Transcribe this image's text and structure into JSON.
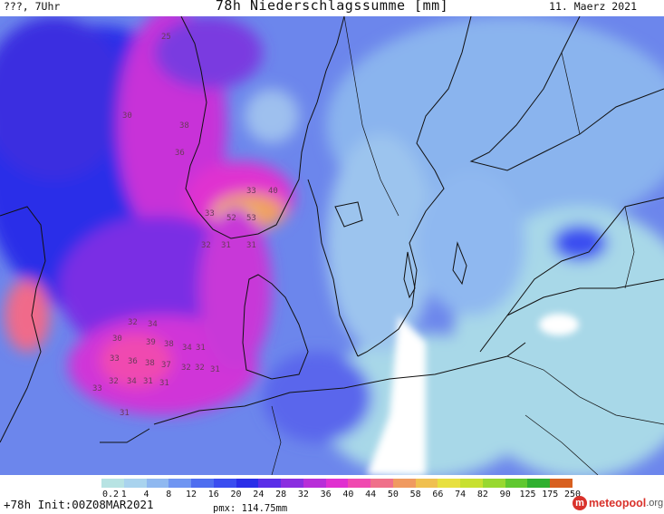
{
  "header": {
    "left": "???, 7Uhr",
    "title": "78h Niederschlagssumme [mm]",
    "date": "11. Maerz 2021"
  },
  "footer": {
    "run_info": "+78h Init:00Z08MAR2021",
    "pmx": "pmx: 114.75mm"
  },
  "logo": {
    "name": "meteopool",
    "suffix": ".org"
  },
  "colorbar": {
    "ticks": [
      "0.2",
      "1",
      "4",
      "8",
      "12",
      "16",
      "20",
      "24",
      "28",
      "32",
      "36",
      "40",
      "44",
      "50",
      "58",
      "66",
      "74",
      "82",
      "90",
      "125",
      "175",
      "250"
    ],
    "colors": [
      "#b7e3e3",
      "#a9d3ee",
      "#8fb8f0",
      "#6f95f2",
      "#4e6ef0",
      "#3a4df0",
      "#2a2ee8",
      "#5a2ee8",
      "#8a2ee0",
      "#b82ed8",
      "#e030d0",
      "#f04ab0",
      "#f0708a",
      "#f09a60",
      "#f0c050",
      "#e8e040",
      "#c8e030",
      "#98d830",
      "#60c830",
      "#30b030",
      "#d86020"
    ]
  },
  "value_labels": [
    "25",
    "30",
    "38",
    "36",
    "33",
    "40",
    "53",
    "52",
    "33",
    "32",
    "31",
    "31",
    "32",
    "34",
    "30",
    "39",
    "38",
    "34",
    "31",
    "33",
    "36",
    "38",
    "37",
    "32",
    "32",
    "31",
    "33",
    "32",
    "34",
    "31",
    "31",
    "31"
  ]
}
